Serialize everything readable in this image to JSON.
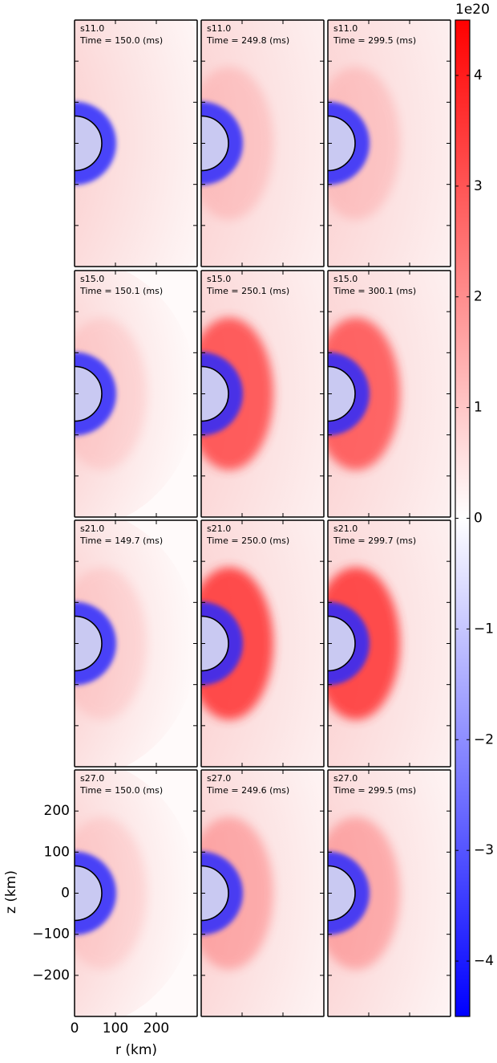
{
  "chart_data": {
    "type": "heatmap_grid",
    "panels": [
      {
        "title": "s11.0",
        "subtitle": "Time = 150.0 (ms)"
      },
      {
        "title": "s11.0",
        "subtitle": "Time = 249.8 (ms)"
      },
      {
        "title": "s11.0",
        "subtitle": "Time = 299.5 (ms)"
      },
      {
        "title": "s15.0",
        "subtitle": "Time = 150.1 (ms)"
      },
      {
        "title": "s15.0",
        "subtitle": "Time = 250.1 (ms)"
      },
      {
        "title": "s15.0",
        "subtitle": "Time = 300.1 (ms)"
      },
      {
        "title": "s21.0",
        "subtitle": "Time = 149.7 (ms)"
      },
      {
        "title": "s21.0",
        "subtitle": "Time = 250.0 (ms)"
      },
      {
        "title": "s21.0",
        "subtitle": "Time = 299.7 (ms)"
      },
      {
        "title": "s27.0",
        "subtitle": "Time = 150.0 (ms)"
      },
      {
        "title": "s27.0",
        "subtitle": "Time = 249.6 (ms)"
      },
      {
        "title": "s27.0",
        "subtitle": "Time = 299.5 (ms)"
      }
    ],
    "xlabel": "r (km)",
    "ylabel": "z (km)",
    "xlim": [
      0,
      300
    ],
    "ylim": [
      -300,
      300
    ],
    "xticks": [
      0,
      100,
      200
    ],
    "yticks": [
      {
        "value": -200,
        "label": "−200"
      },
      {
        "value": -100,
        "label": "−100"
      },
      0,
      100,
      200
    ],
    "colorbar": {
      "clim": [
        -4.5,
        4.5
      ],
      "ticks": [
        {
          "value": -4,
          "label": "−4"
        },
        {
          "value": -3,
          "label": "−3"
        },
        {
          "value": -2,
          "label": "−2"
        },
        {
          "value": -1,
          "label": "−1"
        },
        0,
        1,
        2,
        3,
        4
      ],
      "offset_label": "1e20",
      "colors": [
        "#0000ff",
        "#ffffff",
        "#ff0000"
      ]
    }
  }
}
